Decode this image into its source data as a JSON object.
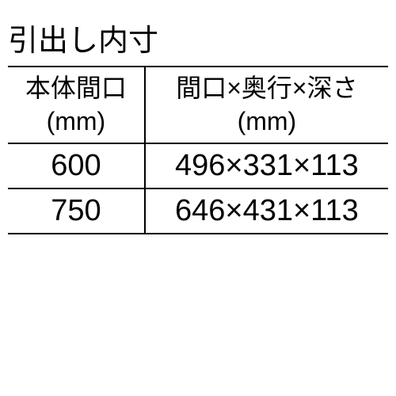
{
  "title": "引出し内寸",
  "table": {
    "columns": [
      {
        "line1": "本体間口",
        "line2": "(mm)"
      },
      {
        "line1": "間口×奥行×深さ",
        "line2": "(mm)"
      }
    ],
    "rows": [
      [
        "600",
        "496×331×113"
      ],
      [
        "750",
        "646×431×113"
      ]
    ],
    "border_color": "#000000",
    "text_color": "#000000",
    "background_color": "#ffffff",
    "title_fontsize": 38,
    "header_fontsize": 32,
    "cell_fontsize": 38
  }
}
